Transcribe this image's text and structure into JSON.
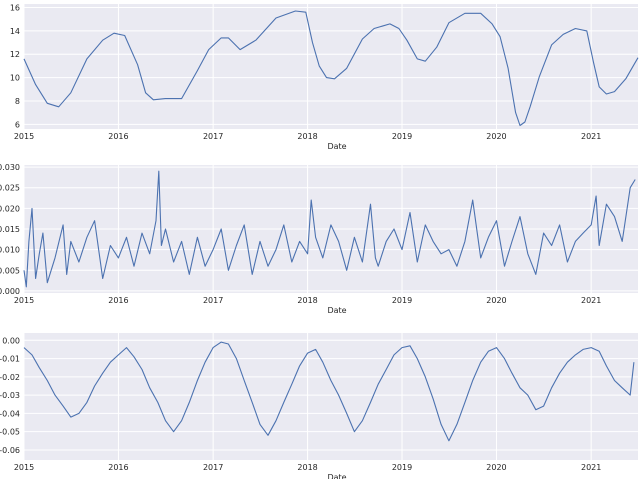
{
  "chart_data": [
    {
      "type": "line",
      "xlabel": "Date",
      "ylabel": "",
      "xlim": [
        "2015-01-01",
        "2021-07-01"
      ],
      "ylim": [
        5.6,
        16.3
      ],
      "yticks": [
        6,
        8,
        10,
        12,
        14,
        16
      ],
      "xticks": [
        "2015",
        "2016",
        "2017",
        "2018",
        "2019",
        "2020",
        "2021"
      ],
      "grid": true,
      "color": "#4c72b0",
      "background": "#eaeaf2",
      "series": [
        {
          "x": [
            "2015-01-01",
            "2015-02-15",
            "2015-04-01",
            "2015-05-15",
            "2015-07-01",
            "2015-09-01",
            "2015-11-01",
            "2015-12-15",
            "2016-01-25",
            "2016-03-15",
            "2016-04-15",
            "2016-05-15",
            "2016-06-30",
            "2016-09-01",
            "2016-11-01",
            "2016-12-15",
            "2017-02-01",
            "2017-03-01",
            "2017-04-15",
            "2017-06-15",
            "2017-09-01",
            "2017-11-15",
            "2017-12-25",
            "2018-01-20",
            "2018-02-15",
            "2018-03-15",
            "2018-04-15",
            "2018-06-01",
            "2018-08-01",
            "2018-09-15",
            "2018-11-15",
            "2018-12-20",
            "2019-01-20",
            "2019-03-01",
            "2019-04-01",
            "2019-05-15",
            "2019-07-01",
            "2019-09-01",
            "2019-11-01",
            "2019-12-15",
            "2020-01-15",
            "2020-02-15",
            "2020-03-15",
            "2020-04-01",
            "2020-04-20",
            "2020-05-10",
            "2020-06-15",
            "2020-08-01",
            "2020-09-15",
            "2020-11-01",
            "2020-12-15",
            "2021-01-10",
            "2021-02-01",
            "2021-03-01",
            "2021-04-01",
            "2021-05-15",
            "2021-07-01"
          ],
          "y": [
            11.6,
            9.4,
            7.8,
            7.5,
            8.7,
            11.6,
            13.2,
            13.8,
            13.6,
            11.1,
            8.7,
            8.1,
            8.2,
            8.2,
            10.6,
            12.4,
            13.4,
            13.4,
            12.4,
            13.2,
            15.1,
            15.7,
            15.6,
            13.0,
            11.0,
            10.0,
            9.9,
            10.8,
            13.3,
            14.2,
            14.6,
            14.2,
            13.2,
            11.6,
            11.4,
            12.6,
            14.7,
            15.5,
            15.5,
            14.6,
            13.5,
            10.8,
            7.0,
            5.9,
            6.2,
            7.5,
            10.1,
            12.8,
            13.7,
            14.2,
            14.0,
            11.3,
            9.2,
            8.6,
            8.8,
            9.9,
            11.7
          ]
        }
      ]
    },
    {
      "type": "line",
      "xlabel": "Date",
      "ylabel": "",
      "xlim": [
        "2015-01-01",
        "2021-07-01"
      ],
      "ylim": [
        -0.0005,
        0.0305
      ],
      "yticks": [
        "0.000",
        "0.005",
        "0.010",
        "0.015",
        "0.020",
        "0.025",
        "0.030"
      ],
      "xticks": [
        "2015",
        "2016",
        "2017",
        "2018",
        "2019",
        "2020",
        "2021"
      ],
      "grid": true,
      "color": "#4c72b0",
      "background": "#eaeaf2",
      "series": [
        {
          "x": [
            "2015-01-01",
            "2015-01-10",
            "2015-01-20",
            "2015-02-01",
            "2015-02-15",
            "2015-03-01",
            "2015-03-15",
            "2015-04-01",
            "2015-05-01",
            "2015-06-01",
            "2015-06-15",
            "2015-07-01",
            "2015-08-01",
            "2015-09-01",
            "2015-10-01",
            "2015-11-01",
            "2015-12-01",
            "2016-01-01",
            "2016-02-01",
            "2016-03-01",
            "2016-04-01",
            "2016-05-01",
            "2016-05-25",
            "2016-06-05",
            "2016-06-15",
            "2016-07-01",
            "2016-08-01",
            "2016-09-01",
            "2016-10-01",
            "2016-11-01",
            "2016-12-01",
            "2017-01-01",
            "2017-02-01",
            "2017-03-01",
            "2017-04-01",
            "2017-05-01",
            "2017-06-01",
            "2017-07-01",
            "2017-08-01",
            "2017-09-01",
            "2017-10-01",
            "2017-11-01",
            "2017-12-01",
            "2018-01-01",
            "2018-01-15",
            "2018-02-01",
            "2018-03-01",
            "2018-04-01",
            "2018-05-01",
            "2018-06-01",
            "2018-07-01",
            "2018-08-01",
            "2018-09-01",
            "2018-09-20",
            "2018-10-01",
            "2018-11-01",
            "2018-12-01",
            "2019-01-01",
            "2019-02-01",
            "2019-03-01",
            "2019-04-01",
            "2019-05-01",
            "2019-06-01",
            "2019-07-01",
            "2019-08-01",
            "2019-09-01",
            "2019-10-01",
            "2019-11-01",
            "2019-12-01",
            "2020-01-01",
            "2020-02-01",
            "2020-03-01",
            "2020-04-01",
            "2020-05-01",
            "2020-06-01",
            "2020-07-01",
            "2020-08-01",
            "2020-09-01",
            "2020-10-01",
            "2020-11-01",
            "2020-12-01",
            "2021-01-01",
            "2021-01-20",
            "2021-02-01",
            "2021-03-01",
            "2021-04-01",
            "2021-05-01",
            "2021-06-01",
            "2021-06-20"
          ],
          "y": [
            0.005,
            0.001,
            0.012,
            0.02,
            0.003,
            0.009,
            0.014,
            0.002,
            0.008,
            0.016,
            0.004,
            0.012,
            0.007,
            0.013,
            0.017,
            0.003,
            0.011,
            0.008,
            0.013,
            0.006,
            0.014,
            0.009,
            0.017,
            0.029,
            0.011,
            0.015,
            0.007,
            0.012,
            0.004,
            0.013,
            0.006,
            0.01,
            0.015,
            0.005,
            0.011,
            0.016,
            0.004,
            0.012,
            0.006,
            0.01,
            0.016,
            0.007,
            0.012,
            0.009,
            0.022,
            0.013,
            0.008,
            0.016,
            0.012,
            0.005,
            0.013,
            0.007,
            0.021,
            0.008,
            0.006,
            0.012,
            0.015,
            0.01,
            0.019,
            0.007,
            0.016,
            0.012,
            0.009,
            0.01,
            0.006,
            0.012,
            0.022,
            0.008,
            0.013,
            0.017,
            0.006,
            0.012,
            0.018,
            0.009,
            0.004,
            0.014,
            0.011,
            0.016,
            0.007,
            0.012,
            0.014,
            0.016,
            0.023,
            0.011,
            0.021,
            0.018,
            0.012,
            0.025,
            0.027
          ]
        }
      ]
    },
    {
      "type": "line",
      "xlabel": "Date",
      "ylabel": "",
      "xlim": [
        "2015-01-01",
        "2021-07-01"
      ],
      "ylim": [
        -0.0655,
        0.004
      ],
      "yticks": [
        "0.00",
        "-0.01",
        "-0.02",
        "-0.03",
        "-0.04",
        "-0.05",
        "-0.06"
      ],
      "xticks": [
        "2015",
        "2016",
        "2017",
        "2018",
        "2019",
        "2020",
        "2021"
      ],
      "grid": true,
      "color": "#4c72b0",
      "background": "#eaeaf2",
      "series": [
        {
          "x": [
            "2015-01-01",
            "2015-02-01",
            "2015-03-01",
            "2015-04-01",
            "2015-05-01",
            "2015-06-01",
            "2015-07-01",
            "2015-08-01",
            "2015-09-01",
            "2015-10-01",
            "2015-11-01",
            "2015-12-01",
            "2016-01-01",
            "2016-02-01",
            "2016-03-01",
            "2016-04-01",
            "2016-05-01",
            "2016-06-01",
            "2016-07-01",
            "2016-08-01",
            "2016-09-01",
            "2016-10-01",
            "2016-11-01",
            "2016-12-01",
            "2017-01-01",
            "2017-02-01",
            "2017-03-01",
            "2017-04-01",
            "2017-05-01",
            "2017-06-01",
            "2017-07-01",
            "2017-08-01",
            "2017-09-01",
            "2017-10-01",
            "2017-11-01",
            "2017-12-01",
            "2018-01-01",
            "2018-02-01",
            "2018-03-01",
            "2018-04-01",
            "2018-05-01",
            "2018-06-01",
            "2018-07-01",
            "2018-08-01",
            "2018-09-01",
            "2018-10-01",
            "2018-11-01",
            "2018-12-01",
            "2019-01-01",
            "2019-02-01",
            "2019-03-01",
            "2019-04-01",
            "2019-05-01",
            "2019-06-01",
            "2019-07-01",
            "2019-08-01",
            "2019-09-01",
            "2019-10-01",
            "2019-11-01",
            "2019-12-01",
            "2020-01-01",
            "2020-02-01",
            "2020-03-01",
            "2020-04-01",
            "2020-05-01",
            "2020-06-01",
            "2020-07-01",
            "2020-08-01",
            "2020-09-01",
            "2020-10-01",
            "2020-11-01",
            "2020-12-01",
            "2021-01-01",
            "2021-02-01",
            "2021-03-01",
            "2021-04-01",
            "2021-05-01",
            "2021-06-01",
            "2021-06-15"
          ],
          "y": [
            -0.004,
            -0.008,
            -0.015,
            -0.022,
            -0.03,
            -0.036,
            -0.042,
            -0.04,
            -0.034,
            -0.025,
            -0.018,
            -0.012,
            -0.008,
            -0.004,
            -0.009,
            -0.016,
            -0.026,
            -0.034,
            -0.044,
            -0.05,
            -0.044,
            -0.034,
            -0.022,
            -0.012,
            -0.004,
            -0.001,
            -0.002,
            -0.01,
            -0.022,
            -0.034,
            -0.046,
            -0.052,
            -0.044,
            -0.034,
            -0.024,
            -0.014,
            -0.007,
            -0.005,
            -0.012,
            -0.022,
            -0.03,
            -0.04,
            -0.05,
            -0.044,
            -0.034,
            -0.024,
            -0.016,
            -0.008,
            -0.004,
            -0.003,
            -0.01,
            -0.02,
            -0.032,
            -0.046,
            -0.055,
            -0.046,
            -0.034,
            -0.022,
            -0.012,
            -0.006,
            -0.004,
            -0.01,
            -0.018,
            -0.026,
            -0.03,
            -0.038,
            -0.036,
            -0.026,
            -0.018,
            -0.012,
            -0.008,
            -0.005,
            -0.004,
            -0.006,
            -0.014,
            -0.022,
            -0.026,
            -0.03,
            -0.012
          ]
        }
      ]
    }
  ]
}
